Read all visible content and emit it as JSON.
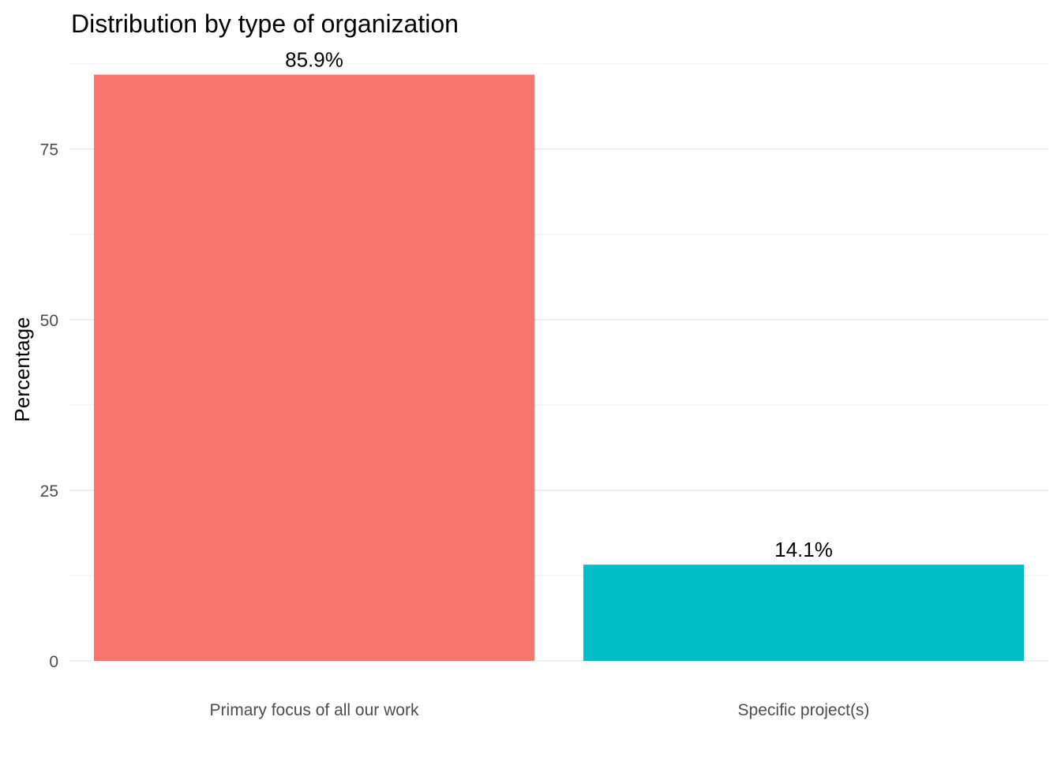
{
  "chart_data": {
    "type": "bar",
    "title": "Distribution by type of organization",
    "xlabel": "",
    "ylabel": "Percentage",
    "categories": [
      "Primary focus of all our work",
      "Specific project(s)"
    ],
    "values": [
      85.9,
      14.1
    ],
    "data_labels": [
      "85.9%",
      "14.1%"
    ],
    "colors": [
      "#F8766D",
      "#00BFC4"
    ],
    "ylim": [
      0,
      87
    ],
    "y_ticks": [
      0,
      25,
      50,
      75
    ],
    "y_tick_labels": [
      "0",
      "25",
      "50",
      "75"
    ],
    "y_minor_ticks": [
      12.5,
      37.5,
      62.5,
      87.5
    ],
    "grid": true,
    "legend": "none"
  }
}
